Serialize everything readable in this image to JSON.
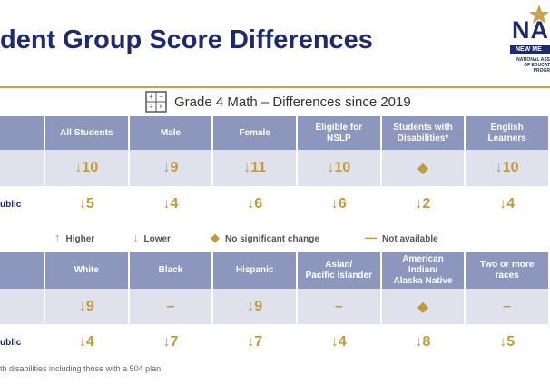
{
  "header": {
    "title": "dent Group Score Differences",
    "logo": {
      "mark": "NAE",
      "band": "NEW ME",
      "lines": [
        "NATIONAL ASS",
        "OF EDUCAT",
        "PROGR"
      ]
    }
  },
  "subtitle": "Grade 4 Math – Differences since 2019",
  "table1": {
    "columns": [
      "All Students",
      "Male",
      "Female",
      "Eligible for\nNSLP",
      "Students with\nDisabilities*",
      "English\nLearners"
    ],
    "rows": [
      {
        "cells": [
          "↓10",
          "↓9",
          "↓11",
          "↓10",
          "◆",
          "↓10"
        ]
      },
      {
        "label": "ublic",
        "cells": [
          "↓5",
          "↓4",
          "↓6",
          "↓6",
          "↓2",
          "↓4"
        ]
      }
    ]
  },
  "legend": [
    {
      "symbol": "↑",
      "text": "Higher"
    },
    {
      "symbol": "↓",
      "text": "Lower"
    },
    {
      "symbol": "◆",
      "text": "No significant change"
    },
    {
      "symbol": "—",
      "text": "Not available"
    }
  ],
  "table2": {
    "columns": [
      "White",
      "Black",
      "Hispanic",
      "Asian/\nPacific Islander",
      "American\nIndian/\nAlaska Native",
      "Two or more\nraces"
    ],
    "rows": [
      {
        "cells": [
          "↓9",
          "–",
          "↓9",
          "–",
          "◆",
          "–"
        ]
      },
      {
        "label": "ublic",
        "cells": [
          "↓4",
          "↓7",
          "↓7",
          "↓4",
          "↓8",
          "↓5"
        ]
      }
    ]
  },
  "footnote": "th disabilities including those with a 504 plan."
}
